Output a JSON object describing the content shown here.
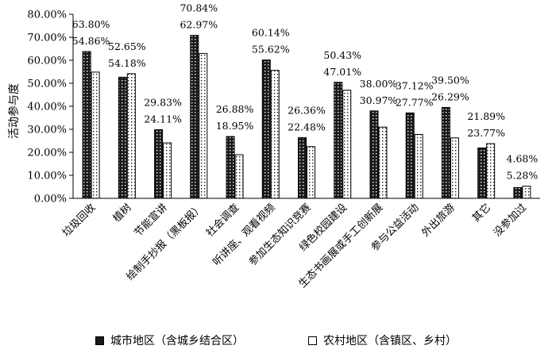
{
  "chart_data": {
    "type": "bar",
    "ylabel": "活动参与度",
    "ylim": [
      0,
      80
    ],
    "yticks": [
      "0.00%",
      "10.00%",
      "20.00%",
      "30.00%",
      "40.00%",
      "50.00%",
      "60.00%",
      "70.00%",
      "80.00%"
    ],
    "categories": [
      "垃圾回收",
      "植树",
      "节能宣讲",
      "绘制手抄报（黑板报）",
      "社会调查",
      "听讲座、观看视频",
      "参加生态知识竞赛",
      "绿色校园建设",
      "生态书画展或手工创新展",
      "参与公益活动",
      "外出旅游",
      "其它",
      "没参加过"
    ],
    "series": [
      {
        "name": "城市地区（含城乡结合区）",
        "color": "#1a1a1a",
        "values": [
          63.8,
          52.65,
          29.83,
          70.84,
          26.88,
          60.14,
          26.36,
          50.43,
          38.0,
          37.12,
          39.5,
          21.89,
          4.68
        ],
        "labels": [
          "63.80%",
          "52.65%",
          "29.83%",
          "70.84%",
          "26.88%",
          "60.14%",
          "26.36%",
          "50.43%",
          "38.00%",
          "37.12%",
          "39.50%",
          "21.89%",
          "4.68%"
        ]
      },
      {
        "name": "农村地区（含镇区、乡村）",
        "color": "#ffffff",
        "values": [
          54.86,
          54.18,
          24.11,
          62.97,
          18.95,
          55.62,
          22.48,
          47.01,
          30.97,
          27.77,
          26.29,
          23.77,
          5.28
        ],
        "labels": [
          "54.86%",
          "54.18%",
          "24.11%",
          "62.97%",
          "18.95%",
          "55.62%",
          "22.48%",
          "47.01%",
          "30.97%",
          "27.77%",
          "26.29%",
          "23.77%",
          "5.28%"
        ]
      }
    ],
    "grid": false,
    "legend_position": "bottom"
  }
}
